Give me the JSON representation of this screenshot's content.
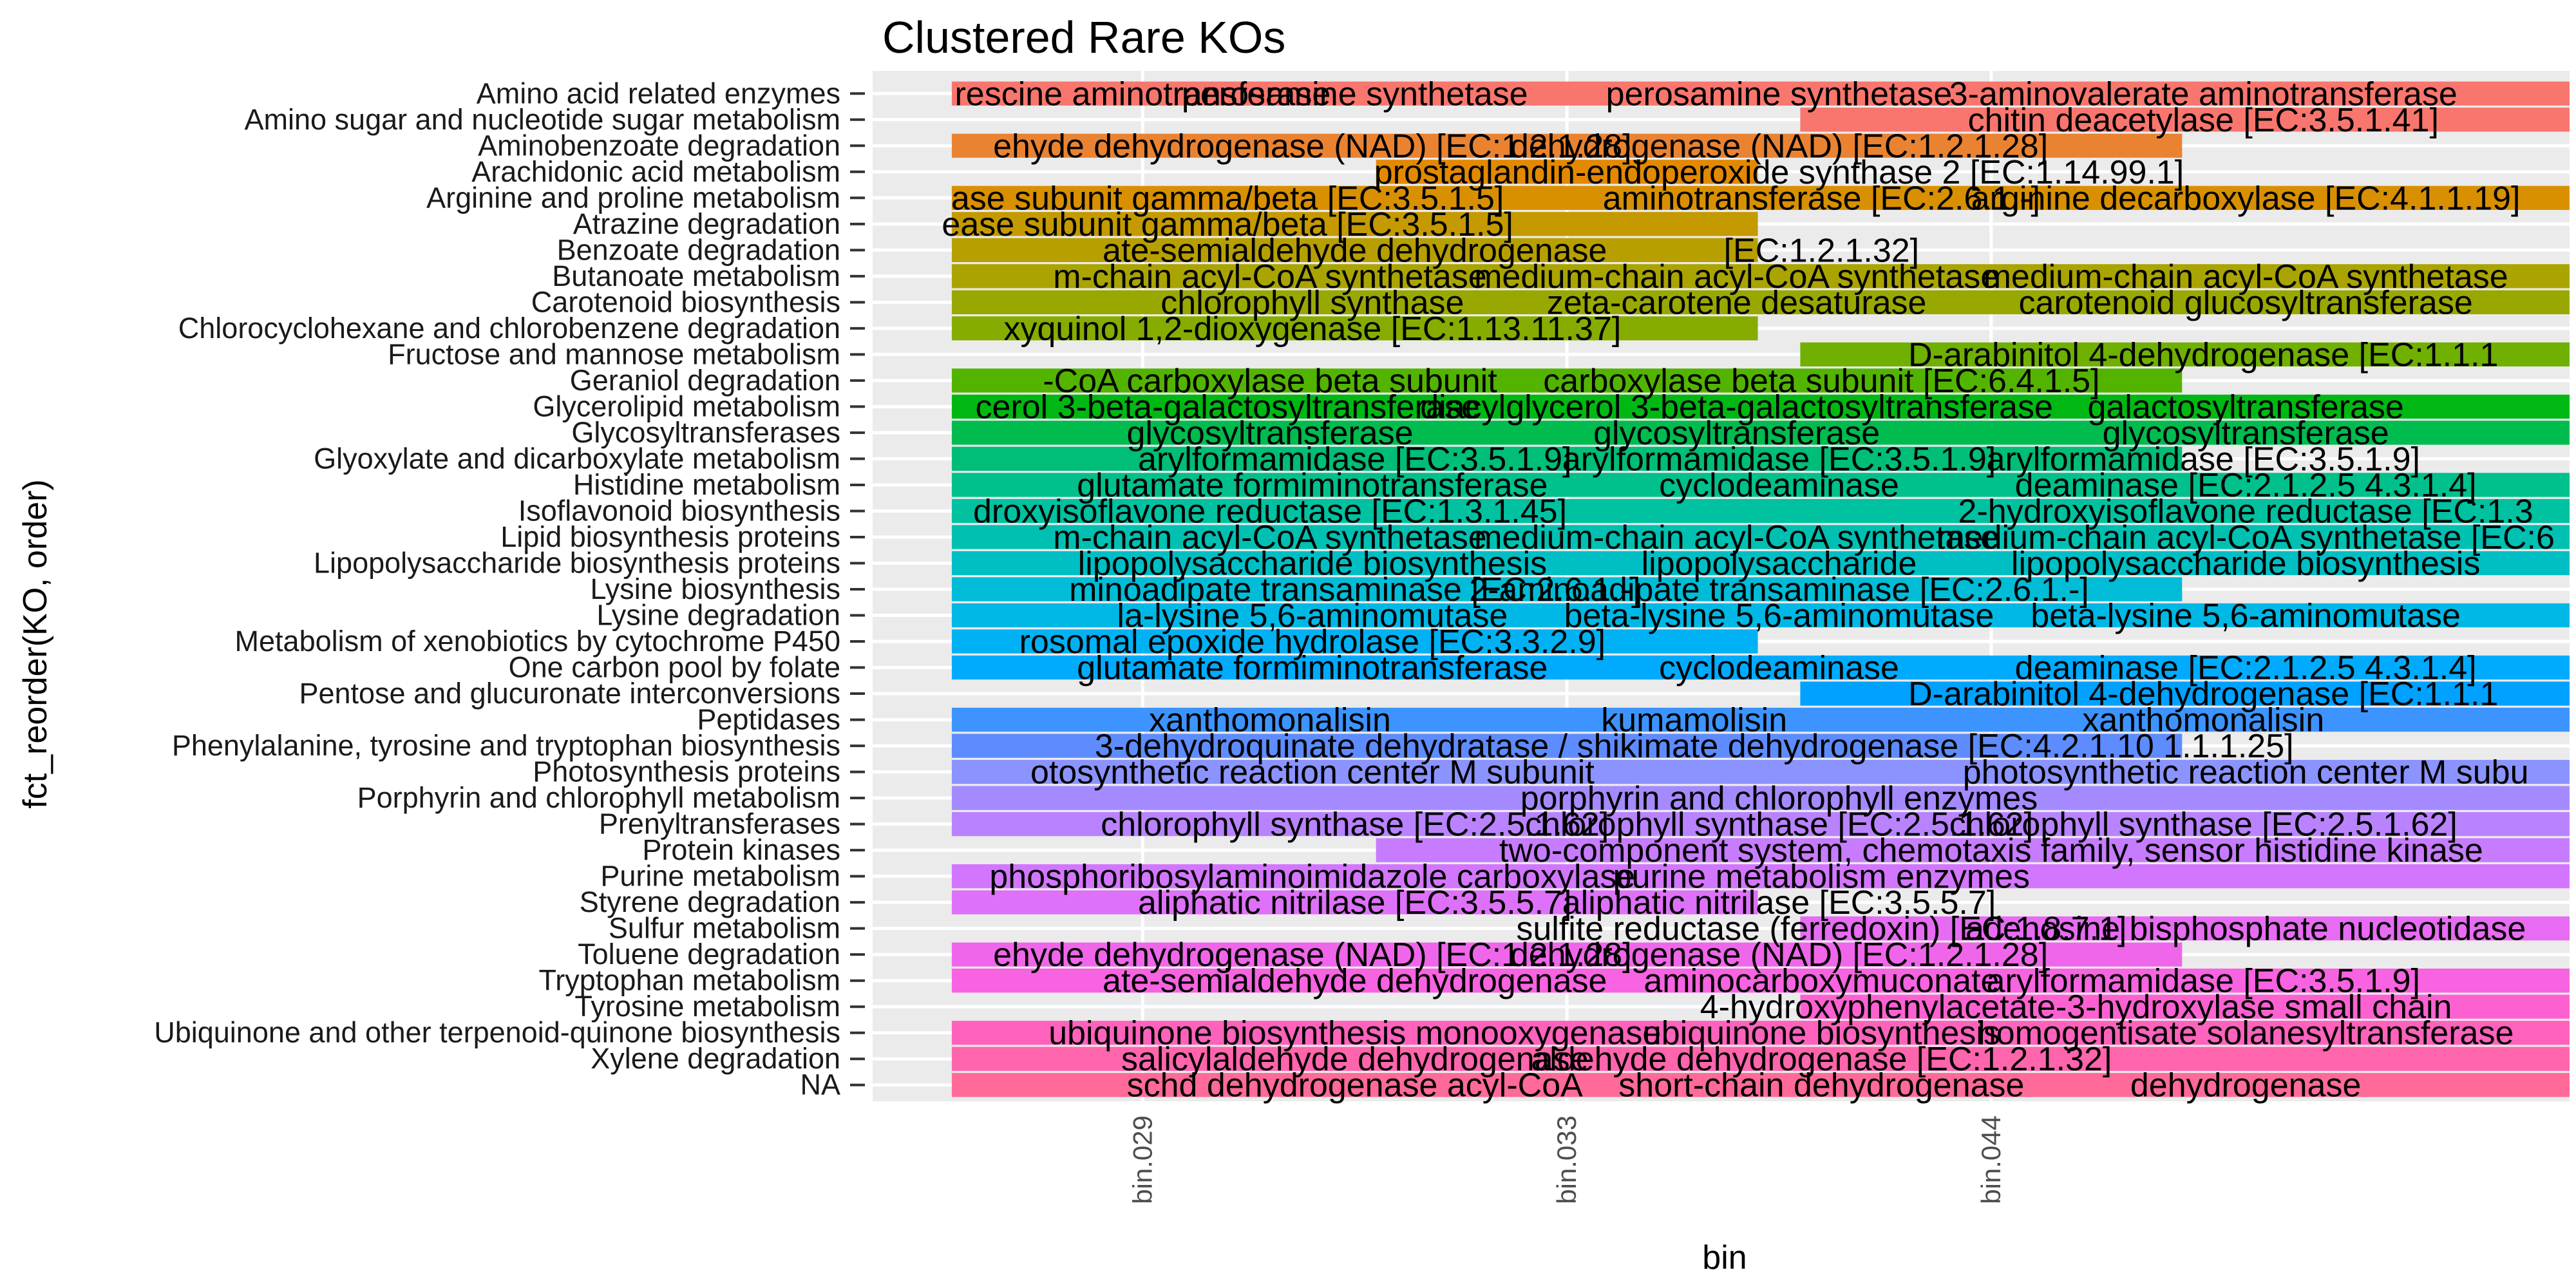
{
  "chart_data": {
    "type": "bar",
    "title": "Clustered Rare KOs",
    "xlabel": "bin",
    "ylabel": "fct_reorder(KO, order)",
    "legend": "none",
    "grid": true,
    "x_categories": [
      "bin.029",
      "bin.033",
      "bin.044"
    ],
    "categories": [
      "Amino acid related enzymes",
      "Amino sugar and nucleotide sugar metabolism",
      "Aminobenzoate degradation",
      "Arachidonic acid metabolism",
      "Arginine and proline metabolism",
      "Atrazine degradation",
      "Benzoate degradation",
      "Butanoate metabolism",
      "Carotenoid biosynthesis",
      "Chlorocyclohexane and chlorobenzene degradation",
      "Fructose and mannose metabolism",
      "Geraniol degradation",
      "Glycerolipid metabolism",
      "Glycosyltransferases",
      "Glyoxylate and dicarboxylate metabolism",
      "Histidine metabolism",
      "Isoflavonoid biosynthesis",
      "Lipid biosynthesis proteins",
      "Lipopolysaccharide biosynthesis proteins",
      "Lysine biosynthesis",
      "Lysine degradation",
      "Metabolism of xenobiotics by cytochrome P450",
      "One carbon pool by folate",
      "Pentose and glucuronate interconversions",
      "Peptidases",
      "Phenylalanine, tyrosine and tryptophan biosynthesis",
      "Photosynthesis proteins",
      "Porphyrin and chlorophyll metabolism",
      "Prenyltransferases",
      "Protein kinases",
      "Purine metabolism",
      "Styrene degradation",
      "Sulfur metabolism",
      "Toluene degradation",
      "Tryptophan metabolism",
      "Tyrosine metabolism",
      "Ubiquinone and other terpenoid-quinone biosynthesis",
      "Xylene degradation",
      "NA"
    ],
    "bars": [
      {
        "row": 0,
        "from": 0,
        "to": 3,
        "color": "#F8766D",
        "labels": [
          {
            "x": 0,
            "text": "rescine aminotransferase"
          },
          {
            "x": 0.5,
            "text": "perosamine synthetase"
          },
          {
            "x": 1.5,
            "text": "perosamine synthetase"
          },
          {
            "x": 2.5,
            "text": "3-aminovalerate aminotransferase"
          }
        ]
      },
      {
        "row": 1,
        "from": 2,
        "to": 3,
        "color": "#F8766D",
        "labels": [
          {
            "x": 2.5,
            "text": "chitin deacetylase [EC:3.5.1.41]"
          }
        ]
      },
      {
        "row": 2,
        "from": 0,
        "to": 2,
        "color": "#EA8331",
        "labels": [
          {
            "x": 0.4,
            "text": "ehyde dehydrogenase (NAD) [EC:1.2.1.28]"
          },
          {
            "x": 1.5,
            "text": "dehydrogenase (NAD) [EC:1.2.1.28]"
          }
        ]
      },
      {
        "row": 3,
        "from": 1,
        "to": 1,
        "color": "#E38900",
        "labels": [
          {
            "x": 1.5,
            "text": "prostaglandin-endoperoxide synthase 2 [EC:1.14.99.1]"
          }
        ]
      },
      {
        "row": 4,
        "from": 0,
        "to": 3,
        "color": "#D89000",
        "labels": [
          {
            "x": 0.2,
            "text": "ase subunit gamma/beta [EC:3.5.1.5]"
          },
          {
            "x": 1.6,
            "text": "aminotransferase [EC:2.6.1.-]"
          },
          {
            "x": 2.6,
            "text": "arginine decarboxylase [EC:4.1.1.19]"
          }
        ]
      },
      {
        "row": 5,
        "from": 0,
        "to": 1,
        "color": "#C49A00",
        "labels": [
          {
            "x": 0.2,
            "text": "ease subunit gamma/beta [EC:3.5.1.5]"
          }
        ]
      },
      {
        "row": 6,
        "from": 0,
        "to": 1,
        "color": "#B79F00",
        "labels": [
          {
            "x": 0.5,
            "text": "ate-semialdehyde dehydrogenase"
          },
          {
            "x": 1.6,
            "text": "[EC:1.2.1.32]"
          }
        ]
      },
      {
        "row": 7,
        "from": 0,
        "to": 3,
        "color": "#A9A400",
        "labels": [
          {
            "x": 0.3,
            "text": "m-chain acyl-CoA synthetase"
          },
          {
            "x": 1.4,
            "text": "medium-chain acyl-CoA synthetase"
          },
          {
            "x": 2.6,
            "text": "medium-chain acyl-CoA synthetase"
          }
        ]
      },
      {
        "row": 8,
        "from": 0,
        "to": 3,
        "color": "#99A800",
        "labels": [
          {
            "x": 0.4,
            "text": "chlorophyll synthase"
          },
          {
            "x": 1.4,
            "text": "zeta-carotene desaturase"
          },
          {
            "x": 2.6,
            "text": "carotenoid glucosyltransferase"
          }
        ]
      },
      {
        "row": 9,
        "from": 0,
        "to": 1,
        "color": "#86AC00",
        "labels": [
          {
            "x": 0.4,
            "text": "xyquinol 1,2-dioxygenase [EC:1.13.11.37]"
          }
        ]
      },
      {
        "row": 10,
        "from": 2,
        "to": 3,
        "color": "#6FB000",
        "labels": [
          {
            "x": 2.5,
            "text": "D-arabinitol 4-dehydrogenase [EC:1.1.1"
          }
        ]
      },
      {
        "row": 11,
        "from": 0,
        "to": 2,
        "color": "#53B400",
        "labels": [
          {
            "x": 0.3,
            "text": "-CoA carboxylase beta subunit"
          },
          {
            "x": 1.6,
            "text": "carboxylase beta subunit [EC:6.4.1.5]"
          }
        ]
      },
      {
        "row": 12,
        "from": 0,
        "to": 3,
        "color": "#00B813",
        "labels": [
          {
            "x": 0.2,
            "text": "cerol 3-beta-galactosyltransferase"
          },
          {
            "x": 1.4,
            "text": "diacylglycerol 3-beta-galactosyltransferase"
          },
          {
            "x": 2.6,
            "text": "galactosyltransferase"
          }
        ]
      },
      {
        "row": 13,
        "from": 0,
        "to": 3,
        "color": "#00BB4E",
        "labels": [
          {
            "x": 0.3,
            "text": "glycosyltransferase"
          },
          {
            "x": 1.4,
            "text": "glycosyltransferase"
          },
          {
            "x": 2.6,
            "text": "glycosyltransferase"
          }
        ]
      },
      {
        "row": 14,
        "from": 0,
        "to": 2,
        "color": "#00BD77",
        "labels": [
          {
            "x": 0.5,
            "text": "arylformamidase [EC:3.5.1.9]"
          },
          {
            "x": 1.5,
            "text": "arylformamidase [EC:3.5.1.9]"
          },
          {
            "x": 2.5,
            "text": "arylformamidase [EC:3.5.1.9]"
          }
        ]
      },
      {
        "row": 15,
        "from": 0,
        "to": 3,
        "color": "#00C08B",
        "labels": [
          {
            "x": 0.4,
            "text": "glutamate formiminotransferase"
          },
          {
            "x": 1.5,
            "text": "cyclodeaminase"
          },
          {
            "x": 2.6,
            "text": "deaminase [EC:2.1.2.5 4.3.1.4]"
          }
        ]
      },
      {
        "row": 16,
        "from": 0,
        "to": 3,
        "color": "#00C1A0",
        "labels": [
          {
            "x": 0.3,
            "text": "droxyisoflavone reductase [EC:1.3.1.45]"
          },
          {
            "x": 2.6,
            "text": "2-hydroxyisoflavone reductase [EC:1.3"
          }
        ]
      },
      {
        "row": 17,
        "from": 0,
        "to": 3,
        "color": "#00C0B2",
        "labels": [
          {
            "x": 0.3,
            "text": "m-chain acyl-CoA synthetase"
          },
          {
            "x": 1.4,
            "text": "medium-chain acyl-CoA synthetase"
          },
          {
            "x": 2.6,
            "text": "medium-chain acyl-CoA synthetase [EC:6"
          }
        ]
      },
      {
        "row": 18,
        "from": 0,
        "to": 3,
        "color": "#00BFC4",
        "labels": [
          {
            "x": 0.4,
            "text": "lipopolysaccharide biosynthesis"
          },
          {
            "x": 1.5,
            "text": "lipopolysaccharide"
          },
          {
            "x": 2.6,
            "text": "lipopolysaccharide biosynthesis"
          }
        ]
      },
      {
        "row": 19,
        "from": 0,
        "to": 2,
        "color": "#00BCD6",
        "labels": [
          {
            "x": 0.5,
            "text": "minoadipate transaminase [EC:2.6.1.-]"
          },
          {
            "x": 1.5,
            "text": "2-aminoadipate transaminase [EC:2.6.1.-]"
          }
        ]
      },
      {
        "row": 20,
        "from": 0,
        "to": 3,
        "color": "#00B8E5",
        "labels": [
          {
            "x": 0.4,
            "text": "la-lysine 5,6-aminomutase"
          },
          {
            "x": 1.5,
            "text": "beta-lysine 5,6-aminomutase"
          },
          {
            "x": 2.6,
            "text": "beta-lysine 5,6-aminomutase"
          }
        ]
      },
      {
        "row": 21,
        "from": 0,
        "to": 1,
        "color": "#00B2F3",
        "labels": [
          {
            "x": 0.4,
            "text": "rosomal epoxide hydrolase [EC:3.3.2.9]"
          }
        ]
      },
      {
        "row": 22,
        "from": 0,
        "to": 3,
        "color": "#00ABFD",
        "labels": [
          {
            "x": 0.4,
            "text": "glutamate formiminotransferase"
          },
          {
            "x": 1.5,
            "text": "cyclodeaminase"
          },
          {
            "x": 2.6,
            "text": "deaminase [EC:2.1.2.5 4.3.1.4]"
          }
        ]
      },
      {
        "row": 23,
        "from": 2,
        "to": 3,
        "color": "#00A1FF",
        "labels": [
          {
            "x": 2.5,
            "text": "D-arabinitol 4-dehydrogenase [EC:1.1.1"
          }
        ]
      },
      {
        "row": 24,
        "from": 0,
        "to": 3,
        "color": "#3D94FF",
        "labels": [
          {
            "x": 0.3,
            "text": "xanthomonalisin"
          },
          {
            "x": 1.3,
            "text": "kumamolisin"
          },
          {
            "x": 2.5,
            "text": "xanthomonalisin"
          }
        ]
      },
      {
        "row": 25,
        "from": 0,
        "to": 2,
        "color": "#5E8CFF",
        "labels": [
          {
            "x": 1.3,
            "text": "3-dehydroquinate dehydratase / shikimate dehydrogenase [EC:4.2.1.10 1.1.1.25]"
          }
        ]
      },
      {
        "row": 26,
        "from": 0,
        "to": 3,
        "color": "#8B93FF",
        "labels": [
          {
            "x": 0.4,
            "text": "otosynthetic reaction center M subunit"
          },
          {
            "x": 2.6,
            "text": "photosynthetic reaction center M subu"
          }
        ]
      },
      {
        "row": 27,
        "from": 0,
        "to": 3,
        "color": "#A58AFF",
        "labels": [
          {
            "x": 1.5,
            "text": "porphyrin and chlorophyll enzymes"
          }
        ]
      },
      {
        "row": 28,
        "from": 0,
        "to": 3,
        "color": "#B983FF",
        "labels": [
          {
            "x": 0.5,
            "text": "chlorophyll synthase [EC:2.5.1.62]"
          },
          {
            "x": 1.5,
            "text": "chlorophyll synthase [EC:2.5.1.62]"
          },
          {
            "x": 2.5,
            "text": "chlorophyll synthase [EC:2.5.1.62]"
          }
        ]
      },
      {
        "row": 29,
        "from": 1,
        "to": 3,
        "color": "#C77CFF",
        "labels": [
          {
            "x": 2.0,
            "text": "two-component system, chemotaxis family, sensor histidine kinase"
          }
        ]
      },
      {
        "row": 30,
        "from": 0,
        "to": 3,
        "color": "#D376FF",
        "labels": [
          {
            "x": 0.4,
            "text": "phosphoribosylaminoimidazole carboxylase"
          },
          {
            "x": 1.6,
            "text": "purine metabolism enzymes"
          }
        ]
      },
      {
        "row": 31,
        "from": 0,
        "to": 1,
        "color": "#DE71F9",
        "labels": [
          {
            "x": 0.5,
            "text": "aliphatic nitrilase [EC:3.5.5.7]"
          },
          {
            "x": 1.5,
            "text": "aliphatic nitrilase [EC:3.5.5.7]"
          }
        ]
      },
      {
        "row": 32,
        "from": 2,
        "to": 3,
        "color": "#E76BF3",
        "labels": [
          {
            "x": 1.6,
            "text": "sulfite reductase (ferredoxin) [EC:1.8.7.1]"
          },
          {
            "x": 2.6,
            "text": "adenosine bisphosphate nucleotidase"
          }
        ]
      },
      {
        "row": 33,
        "from": 0,
        "to": 2,
        "color": "#F066EA",
        "labels": [
          {
            "x": 0.4,
            "text": "ehyde dehydrogenase (NAD) [EC:1.2.1.28]"
          },
          {
            "x": 1.5,
            "text": "dehydrogenase (NAD) [EC:1.2.1.28]"
          }
        ]
      },
      {
        "row": 34,
        "from": 0,
        "to": 3,
        "color": "#F763E0",
        "labels": [
          {
            "x": 0.5,
            "text": "ate-semialdehyde dehydrogenase"
          },
          {
            "x": 1.6,
            "text": "aminocarboxymuconate"
          },
          {
            "x": 2.5,
            "text": "arylformamidase [EC:3.5.1.9]"
          }
        ]
      },
      {
        "row": 35,
        "from": 2,
        "to": 3,
        "color": "#FD61D1",
        "labels": [
          {
            "x": 2.2,
            "text": "4-hydroxyphenylacetate-3-hydroxylase small chain"
          }
        ]
      },
      {
        "row": 36,
        "from": 0,
        "to": 3,
        "color": "#FF62BC",
        "labels": [
          {
            "x": 0.5,
            "text": "ubiquinone biosynthesis monooxygenase"
          },
          {
            "x": 1.6,
            "text": "ubiquinone biosynthesis"
          },
          {
            "x": 2.6,
            "text": "homogentisate solanesyltransferase"
          }
        ]
      },
      {
        "row": 37,
        "from": 0,
        "to": 3,
        "color": "#FF65AC",
        "labels": [
          {
            "x": 0.5,
            "text": "salicylaldehyde dehydrogenase"
          },
          {
            "x": 1.6,
            "text": "aldehyde dehydrogenase [EC:1.2.1.32]"
          }
        ]
      },
      {
        "row": 38,
        "from": 0,
        "to": 3,
        "color": "#FF6A98",
        "labels": [
          {
            "x": 0.5,
            "text": "schd dehydrogenase acyl-CoA"
          },
          {
            "x": 1.6,
            "text": "short-chain dehydrogenase"
          },
          {
            "x": 2.6,
            "text": "dehydrogenase"
          }
        ]
      }
    ]
  }
}
